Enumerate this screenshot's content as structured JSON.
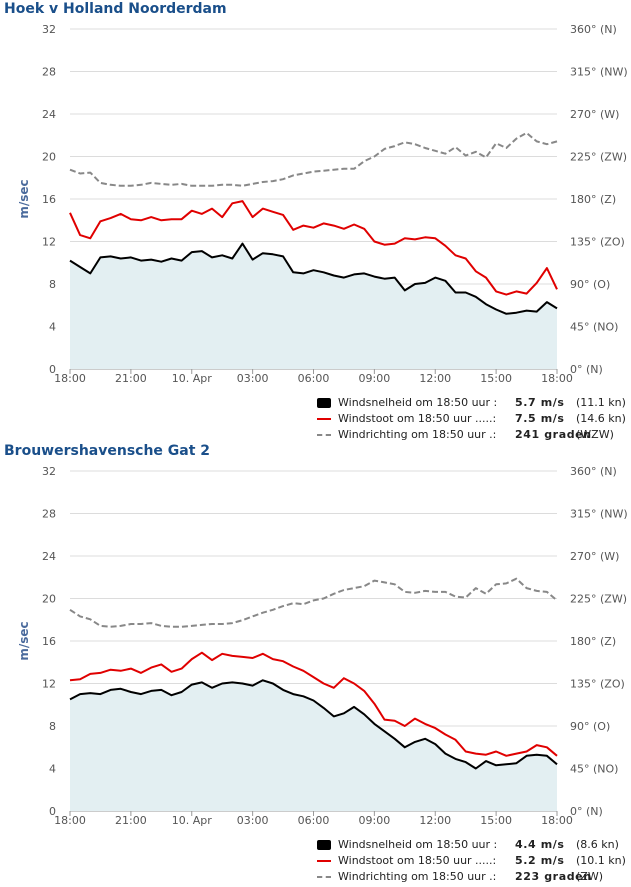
{
  "colors": {
    "speed": "#000000",
    "gust": "#e00000",
    "direction": "#888888",
    "fill": "#e3eff2",
    "title": "#1a4f8a",
    "axis_label": "#4a6a9c"
  },
  "charts": [
    {
      "title": "Hoek v Holland Noorderdam",
      "legend": [
        {
          "icon": "black-box-icon",
          "label": "Windsnelheid om 18:50 uur :",
          "value": "5.7 m/s",
          "extra": "(11.1 kn)"
        },
        {
          "icon": "red-line-icon",
          "label": "Windstoot om 18:50 uur .....:",
          "value": "7.5 m/s",
          "extra": "(14.6 kn)"
        },
        {
          "icon": "grey-dash-icon",
          "label": "Windrichting om 18:50 uur .:",
          "value": "241 graden",
          "extra": "(WZW)"
        }
      ]
    },
    {
      "title": "Brouwershavensche Gat 2",
      "legend": [
        {
          "icon": "black-box-icon",
          "label": "Windsnelheid om 18:50 uur :",
          "value": "4.4 m/s",
          "extra": "(8.6 kn)"
        },
        {
          "icon": "red-line-icon",
          "label": "Windstoot om 18:50 uur .....:",
          "value": "5.2 m/s",
          "extra": "(10.1 kn)"
        },
        {
          "icon": "grey-dash-icon",
          "label": "Windrichting om 18:50 uur .:",
          "value": "223 graden",
          "extra": "(ZW)"
        }
      ]
    }
  ],
  "chart_data": [
    {
      "type": "line",
      "title": "Hoek v Holland Noorderdam",
      "ylabel": "m/sec",
      "ylim": [
        0,
        32
      ],
      "y_ticks": [
        "0",
        "4",
        "8",
        "12",
        "16",
        "20",
        "24",
        "28",
        "32"
      ],
      "y2lim": [
        0,
        360
      ],
      "y2_ticks": [
        "0° (N)",
        "45° (NO)",
        "90° (O)",
        "135° (ZO)",
        "180° (Z)",
        "225° (ZW)",
        "270° (W)",
        "315° (NW)",
        "360° (N)"
      ],
      "xlim": [
        0,
        24
      ],
      "x_tick_labels": [
        "18:00",
        "21:00",
        "10. Apr",
        "03:00",
        "06:00",
        "09:00",
        "12:00",
        "15:00",
        "18:00"
      ],
      "grid": true,
      "series": [
        {
          "name": "Windsnelheid",
          "axis": "left",
          "style": "area",
          "x": [
            0,
            0.5,
            1,
            1.5,
            2,
            2.5,
            3,
            3.5,
            4,
            4.5,
            5,
            5.5,
            6,
            6.5,
            7,
            7.5,
            8,
            8.5,
            9,
            9.5,
            10,
            10.5,
            11,
            11.5,
            12,
            12.5,
            13,
            13.5,
            14,
            14.5,
            15,
            15.5,
            16,
            16.5,
            17,
            17.5,
            18,
            18.5,
            19,
            19.5,
            20,
            20.5,
            21,
            21.5,
            22,
            22.5,
            23,
            23.5,
            24
          ],
          "y": [
            10.2,
            9.6,
            9.0,
            10.5,
            10.6,
            10.4,
            10.5,
            10.2,
            10.3,
            10.1,
            10.4,
            10.2,
            11.0,
            11.1,
            10.5,
            10.7,
            10.4,
            11.8,
            10.3,
            10.9,
            10.8,
            10.6,
            9.1,
            9.0,
            9.3,
            9.1,
            8.8,
            8.6,
            8.9,
            9.0,
            8.7,
            8.5,
            8.6,
            7.4,
            8.0,
            8.1,
            8.6,
            8.3,
            7.2,
            7.2,
            6.8,
            6.1,
            5.6,
            5.2,
            5.3,
            5.5,
            5.4,
            6.3,
            5.7
          ]
        },
        {
          "name": "Windstoot",
          "axis": "left",
          "style": "line",
          "x": [
            0,
            0.5,
            1,
            1.5,
            2,
            2.5,
            3,
            3.5,
            4,
            4.5,
            5,
            5.5,
            6,
            6.5,
            7,
            7.5,
            8,
            8.5,
            9,
            9.5,
            10,
            10.5,
            11,
            11.5,
            12,
            12.5,
            13,
            13.5,
            14,
            14.5,
            15,
            15.5,
            16,
            16.5,
            17,
            17.5,
            18,
            18.5,
            19,
            19.5,
            20,
            20.5,
            21,
            21.5,
            22,
            22.5,
            23,
            23.5,
            24
          ],
          "y": [
            14.7,
            12.6,
            12.3,
            13.9,
            14.2,
            14.6,
            14.1,
            14.0,
            14.3,
            14.0,
            14.1,
            14.1,
            14.9,
            14.6,
            15.1,
            14.3,
            15.6,
            15.8,
            14.3,
            15.1,
            14.8,
            14.5,
            13.1,
            13.5,
            13.3,
            13.7,
            13.5,
            13.2,
            13.6,
            13.2,
            12.0,
            11.7,
            11.8,
            12.3,
            12.2,
            12.4,
            12.3,
            11.6,
            10.7,
            10.4,
            9.2,
            8.6,
            7.3,
            7.0,
            7.3,
            7.1,
            8.1,
            9.5,
            7.5
          ]
        },
        {
          "name": "Windrichting",
          "axis": "right",
          "style": "dashed",
          "x": [
            0,
            0.5,
            1,
            1.5,
            2,
            2.5,
            3,
            3.5,
            4,
            4.5,
            5,
            5.5,
            6,
            6.5,
            7,
            7.5,
            8,
            8.5,
            9,
            9.5,
            10,
            10.5,
            11,
            11.5,
            12,
            12.5,
            13,
            13.5,
            14,
            14.5,
            15,
            15.5,
            16,
            16.5,
            17,
            17.5,
            18,
            18.5,
            19,
            19.5,
            20,
            20.5,
            21,
            21.5,
            22,
            22.5,
            23,
            23.5,
            24
          ],
          "y": [
            211,
            207,
            208,
            197,
            195,
            194,
            194,
            195,
            197,
            196,
            195,
            196,
            194,
            194,
            194,
            195,
            195,
            194,
            196,
            198,
            199,
            201,
            205,
            207,
            209,
            210,
            211,
            212,
            212,
            220,
            225,
            233,
            236,
            240,
            238,
            234,
            231,
            228,
            235,
            226,
            230,
            224,
            239,
            234,
            244,
            250,
            241,
            238,
            241
          ]
        }
      ]
    },
    {
      "type": "line",
      "title": "Brouwershavensche Gat 2",
      "ylabel": "m/sec",
      "ylim": [
        0,
        32
      ],
      "y_ticks": [
        "0",
        "4",
        "8",
        "12",
        "16",
        "20",
        "24",
        "28",
        "32"
      ],
      "y2lim": [
        0,
        360
      ],
      "y2_ticks": [
        "0° (N)",
        "45° (NO)",
        "90° (O)",
        "135° (ZO)",
        "180° (Z)",
        "225° (ZW)",
        "270° (W)",
        "315° (NW)",
        "360° (N)"
      ],
      "xlim": [
        0,
        24
      ],
      "x_tick_labels": [
        "18:00",
        "21:00",
        "10. Apr",
        "03:00",
        "06:00",
        "09:00",
        "12:00",
        "15:00",
        "18:00"
      ],
      "grid": true,
      "series": [
        {
          "name": "Windsnelheid",
          "axis": "left",
          "style": "area",
          "x": [
            0,
            0.5,
            1,
            1.5,
            2,
            2.5,
            3,
            3.5,
            4,
            4.5,
            5,
            5.5,
            6,
            6.5,
            7,
            7.5,
            8,
            8.5,
            9,
            9.5,
            10,
            10.5,
            11,
            11.5,
            12,
            12.5,
            13,
            13.5,
            14,
            14.5,
            15,
            15.5,
            16,
            16.5,
            17,
            17.5,
            18,
            18.5,
            19,
            19.5,
            20,
            20.5,
            21,
            21.5,
            22,
            22.5,
            23,
            23.5,
            24
          ],
          "y": [
            10.5,
            11.0,
            11.1,
            11.0,
            11.4,
            11.5,
            11.2,
            11.0,
            11.3,
            11.4,
            10.9,
            11.2,
            11.9,
            12.1,
            11.6,
            12.0,
            12.1,
            12.0,
            11.8,
            12.3,
            12.0,
            11.4,
            11.0,
            10.8,
            10.4,
            9.7,
            8.9,
            9.2,
            9.8,
            9.1,
            8.2,
            7.5,
            6.8,
            6.0,
            6.5,
            6.8,
            6.3,
            5.4,
            4.9,
            4.6,
            4.0,
            4.7,
            4.3,
            4.4,
            4.5,
            5.2,
            5.3,
            5.2,
            4.4
          ]
        },
        {
          "name": "Windstoot",
          "axis": "left",
          "style": "line",
          "x": [
            0,
            0.5,
            1,
            1.5,
            2,
            2.5,
            3,
            3.5,
            4,
            4.5,
            5,
            5.5,
            6,
            6.5,
            7,
            7.5,
            8,
            8.5,
            9,
            9.5,
            10,
            10.5,
            11,
            11.5,
            12,
            12.5,
            13,
            13.5,
            14,
            14.5,
            15,
            15.5,
            16,
            16.5,
            17,
            17.5,
            18,
            18.5,
            19,
            19.5,
            20,
            20.5,
            21,
            21.5,
            22,
            22.5,
            23,
            23.5,
            24
          ],
          "y": [
            12.3,
            12.4,
            12.9,
            13.0,
            13.3,
            13.2,
            13.4,
            13.0,
            13.5,
            13.8,
            13.1,
            13.4,
            14.3,
            14.9,
            14.2,
            14.8,
            14.6,
            14.5,
            14.4,
            14.8,
            14.3,
            14.1,
            13.6,
            13.2,
            12.6,
            12.0,
            11.6,
            12.5,
            12.0,
            11.3,
            10.1,
            8.6,
            8.5,
            8.0,
            8.7,
            8.2,
            7.8,
            7.2,
            6.7,
            5.6,
            5.4,
            5.3,
            5.6,
            5.2,
            5.4,
            5.6,
            6.2,
            6.0,
            5.2
          ]
        },
        {
          "name": "Windrichting",
          "axis": "right",
          "style": "dashed",
          "x": [
            0,
            0.5,
            1,
            1.5,
            2,
            2.5,
            3,
            3.5,
            4,
            4.5,
            5,
            5.5,
            6,
            6.5,
            7,
            7.5,
            8,
            8.5,
            9,
            9.5,
            10,
            10.5,
            11,
            11.5,
            12,
            12.5,
            13,
            13.5,
            14,
            14.5,
            15,
            15.5,
            16,
            16.5,
            17,
            17.5,
            18,
            18.5,
            19,
            19.5,
            20,
            20.5,
            21,
            21.5,
            22,
            22.5,
            23,
            23.5,
            24
          ],
          "y": [
            213,
            206,
            203,
            196,
            195,
            196,
            198,
            198,
            199,
            196,
            195,
            195,
            196,
            197,
            198,
            198,
            199,
            202,
            206,
            210,
            213,
            217,
            220,
            219,
            223,
            225,
            230,
            234,
            236,
            238,
            244,
            242,
            240,
            232,
            231,
            233,
            232,
            232,
            227,
            226,
            236,
            230,
            240,
            241,
            246,
            236,
            233,
            232,
            223
          ]
        }
      ]
    }
  ]
}
